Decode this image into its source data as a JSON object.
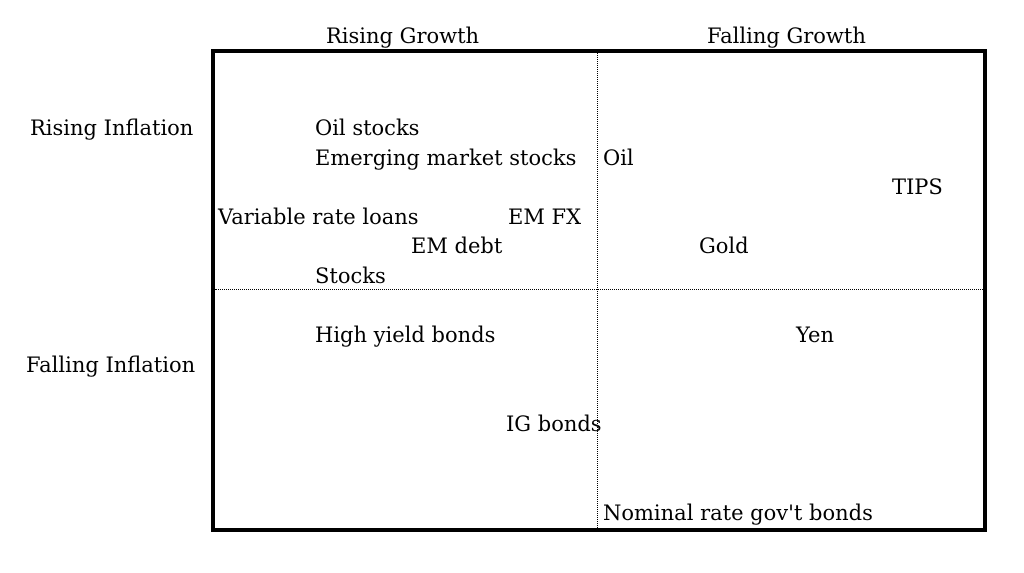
{
  "columns": {
    "left": "Rising Growth",
    "right": "Falling Growth"
  },
  "rows": {
    "top": "Rising Inflation",
    "bottom": "Falling Inflation"
  },
  "quadrants": {
    "rising_growth_rising_inflation": [
      "Oil stocks",
      "Emerging market stocks",
      "Variable rate loans",
      "EM FX",
      "EM debt",
      "Stocks"
    ],
    "falling_growth_rising_inflation": [
      "Oil",
      "TIPS",
      "Gold"
    ],
    "rising_growth_falling_inflation": [
      "High yield bonds",
      "IG bonds"
    ],
    "falling_growth_falling_inflation": [
      "Yen",
      "Nominal rate gov't bonds"
    ]
  }
}
